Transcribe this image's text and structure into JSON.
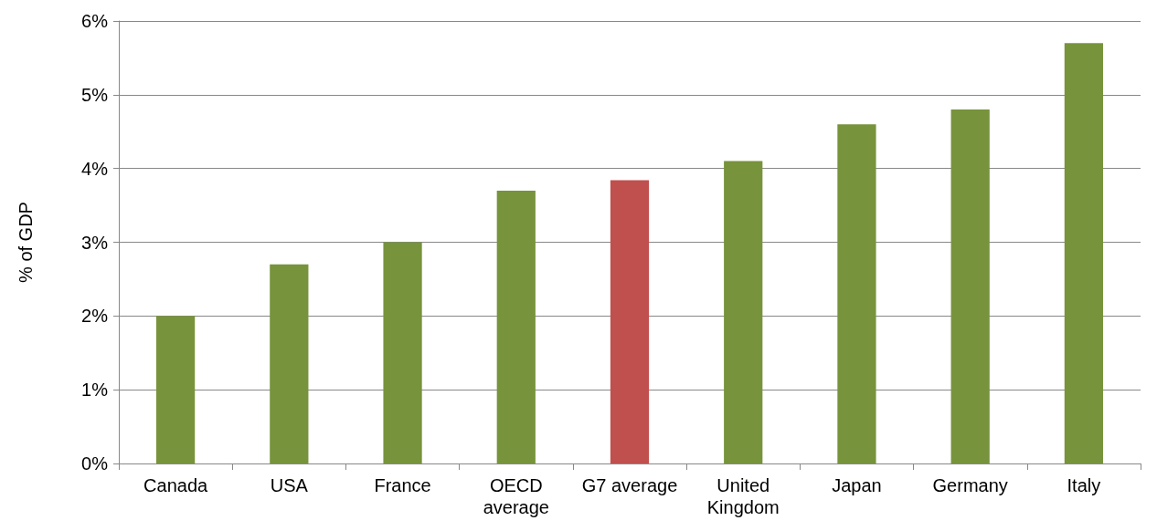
{
  "chart_data": {
    "type": "bar",
    "ylabel": "% of GDP",
    "categories": [
      "Canada",
      "USA",
      "France",
      "OECD\naverage",
      "G7 average",
      "United\nKingdom",
      "Japan",
      "Germany",
      "Italy"
    ],
    "values": [
      2.0,
      2.7,
      3.0,
      3.7,
      3.84,
      4.1,
      4.6,
      4.8,
      5.7
    ],
    "colors": [
      "#77933c",
      "#77933c",
      "#77933c",
      "#77933c",
      "#c0504d",
      "#77933c",
      "#77933c",
      "#77933c",
      "#77933c"
    ],
    "ylim": [
      0,
      6
    ],
    "yticks": [
      {
        "value": 0,
        "label": "0%"
      },
      {
        "value": 1,
        "label": "1%"
      },
      {
        "value": 2,
        "label": "2%"
      },
      {
        "value": 3,
        "label": "3%"
      },
      {
        "value": 4,
        "label": "4%"
      },
      {
        "value": 5,
        "label": "5%"
      },
      {
        "value": 6,
        "label": "6%"
      }
    ],
    "grid": "y"
  }
}
